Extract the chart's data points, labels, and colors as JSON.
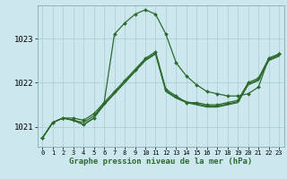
{
  "xlabel": "Graphe pression niveau de la mer (hPa)",
  "ylabel": "",
  "bg_color": "#cce8ee",
  "grid_color": "#aaccd4",
  "line_color": "#2d6a2d",
  "xlim": [
    -0.5,
    23.5
  ],
  "ylim": [
    1020.55,
    1023.75
  ],
  "yticks": [
    1021,
    1022,
    1023
  ],
  "xticks": [
    0,
    1,
    2,
    3,
    4,
    5,
    6,
    7,
    8,
    9,
    10,
    11,
    12,
    13,
    14,
    15,
    16,
    17,
    18,
    19,
    20,
    21,
    22,
    23
  ],
  "series": [
    {
      "x": [
        0,
        1,
        2,
        3,
        4,
        5,
        6,
        7,
        8,
        9,
        10,
        11,
        12,
        13,
        14,
        15,
        16,
        17,
        18,
        19,
        20,
        21,
        22,
        23
      ],
      "y": [
        1020.75,
        1021.1,
        1021.2,
        1021.2,
        1021.15,
        1021.3,
        1021.55,
        1023.1,
        1023.35,
        1023.55,
        1023.65,
        1023.55,
        1023.1,
        1022.45,
        1022.15,
        1021.95,
        1021.8,
        1021.75,
        1021.7,
        1021.7,
        1021.75,
        1021.9,
        1022.55,
        1022.65
      ],
      "lw": 0.9,
      "marker": true
    },
    {
      "x": [
        0,
        1,
        2,
        3,
        4,
        5,
        6,
        7,
        8,
        9,
        10,
        11,
        12,
        13,
        14,
        15,
        16,
        17,
        18,
        19,
        20,
        21,
        22,
        23
      ],
      "y": [
        1020.75,
        1021.1,
        1021.2,
        1021.15,
        1021.05,
        1021.2,
        1021.55,
        1021.8,
        1022.05,
        1022.3,
        1022.55,
        1022.7,
        1021.85,
        1021.7,
        1021.55,
        1021.55,
        1021.5,
        1021.5,
        1021.55,
        1021.6,
        1022.0,
        1022.1,
        1022.55,
        1022.65
      ],
      "lw": 0.9,
      "marker": true
    },
    {
      "x": [
        0,
        1,
        2,
        3,
        4,
        5,
        6,
        7,
        8,
        9,
        10,
        11,
        12,
        13,
        14,
        15,
        16,
        17,
        18,
        19,
        20,
        21,
        22,
        23
      ],
      "y": [
        1020.75,
        1021.1,
        1021.2,
        1021.15,
        1021.05,
        1021.2,
        1021.5,
        1021.75,
        1022.0,
        1022.25,
        1022.5,
        1022.65,
        1021.8,
        1021.65,
        1021.55,
        1021.5,
        1021.45,
        1021.45,
        1021.5,
        1021.55,
        1021.95,
        1022.05,
        1022.5,
        1022.6
      ],
      "lw": 0.9,
      "marker": false
    },
    {
      "x": [
        0,
        1,
        2,
        3,
        4,
        5,
        6,
        7,
        8,
        9,
        10,
        11,
        12,
        13,
        14,
        15,
        16,
        17,
        18,
        19,
        20,
        21,
        22,
        23
      ],
      "y": [
        1020.75,
        1021.1,
        1021.2,
        1021.15,
        1021.1,
        1021.25,
        1021.52,
        1021.77,
        1022.02,
        1022.27,
        1022.52,
        1022.67,
        1021.82,
        1021.67,
        1021.57,
        1021.52,
        1021.47,
        1021.47,
        1021.52,
        1021.57,
        1021.97,
        1022.07,
        1022.52,
        1022.62
      ],
      "lw": 0.9,
      "marker": false
    }
  ]
}
